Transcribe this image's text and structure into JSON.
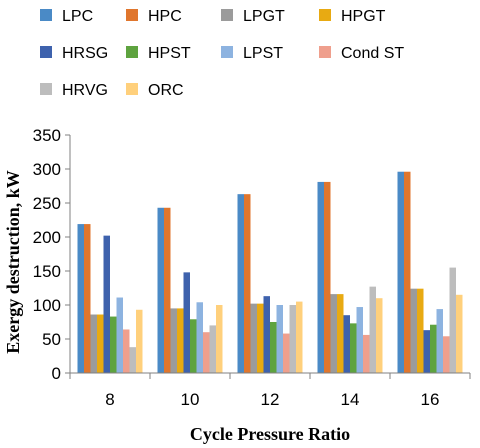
{
  "chart_data": {
    "type": "bar",
    "xlabel": "Cycle Pressure Ratio",
    "ylabel": "Exergy destruction, kW",
    "categories": [
      "8",
      "10",
      "12",
      "14",
      "16"
    ],
    "ylim": [
      0,
      350
    ],
    "yticks": [
      0,
      50,
      100,
      150,
      200,
      250,
      300,
      350
    ],
    "grid": false,
    "legend_position": "top",
    "series": [
      {
        "name": "LPC",
        "color": "#4a8ac6",
        "values": [
          219,
          243,
          263,
          281,
          296
        ]
      },
      {
        "name": "HPC",
        "color": "#e0762d",
        "values": [
          219,
          243,
          263,
          281,
          296
        ]
      },
      {
        "name": "LPGT",
        "color": "#9b9b9b",
        "values": [
          86,
          95,
          102,
          116,
          124
        ]
      },
      {
        "name": "HPGT",
        "color": "#e8aa12",
        "values": [
          86,
          95,
          102,
          116,
          124
        ]
      },
      {
        "name": "HRSG",
        "color": "#3e62ad",
        "values": [
          202,
          148,
          113,
          85,
          63
        ]
      },
      {
        "name": "HPST",
        "color": "#5ea33f",
        "values": [
          83,
          79,
          75,
          73,
          71
        ]
      },
      {
        "name": "LPST",
        "color": "#8db3e0",
        "values": [
          111,
          104,
          100,
          97,
          94
        ]
      },
      {
        "name": "Cond ST",
        "color": "#ef9f8d",
        "values": [
          64,
          60,
          58,
          56,
          54
        ]
      },
      {
        "name": "HRVG",
        "color": "#bdbdbd",
        "values": [
          38,
          70,
          100,
          127,
          155
        ]
      },
      {
        "name": "ORC",
        "color": "#ffd07c",
        "values": [
          93,
          100,
          105,
          110,
          115
        ]
      }
    ]
  }
}
